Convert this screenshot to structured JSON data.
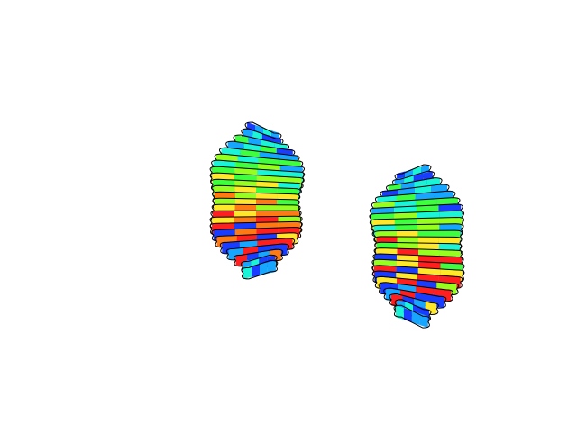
{
  "figure": {
    "background": "#ffffff",
    "outline_color": "#000000",
    "objects": [
      {
        "name": "left-sliced-blob",
        "palette": [
          "#1a3cff",
          "#17a6ff",
          "#19f5d6",
          "#3dff3d",
          "#96ff1e",
          "#ffe72a",
          "#ff7a12",
          "#ff1f1f"
        ]
      },
      {
        "name": "right-sliced-blob",
        "palette": [
          "#1a3cff",
          "#17a6ff",
          "#19f5d6",
          "#3dff3d",
          "#96ff1e",
          "#ffe72a",
          "#ff1f1f"
        ]
      }
    ]
  }
}
